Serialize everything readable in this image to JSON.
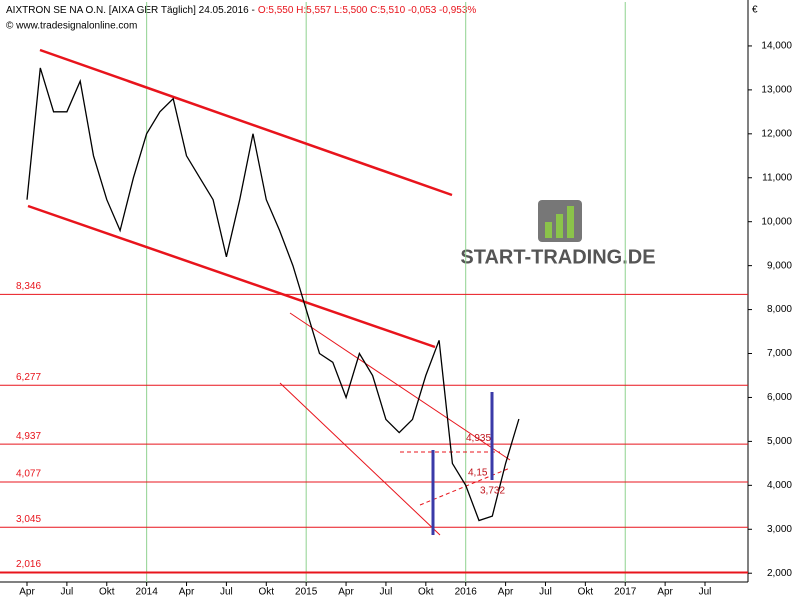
{
  "chart_data": {
    "type": "line",
    "header": {
      "instrument": "AIXTRON SE NA O.N. [AIXA GER  Täglich] 24.05.2016 -",
      "quote": "O:5,550 H:5,557 L:5,500 C:5,510 -0,053 -0,953%"
    },
    "source": "© www.tradesignalonline.com",
    "currency": "€",
    "logo": "START-TRADING.DE",
    "categories": [
      "Apr",
      null,
      null,
      "Jul",
      null,
      null,
      "Okt",
      null,
      null,
      "2014",
      null,
      null,
      "Apr",
      null,
      null,
      "Jul",
      null,
      null,
      "Okt",
      null,
      null,
      "2015",
      null,
      null,
      "Apr",
      null,
      null,
      "Jul",
      null,
      null,
      "Okt",
      null,
      null,
      "2016",
      null,
      null,
      "Apr",
      null,
      null,
      "Jul",
      null,
      null,
      "Okt",
      null,
      null,
      "2017",
      null,
      null,
      "Apr",
      null,
      null,
      "Jul"
    ],
    "series": [
      {
        "name": "AIXTRON SE NA O.N.",
        "color": "#000000",
        "values": [
          10.5,
          13.5,
          12.5,
          12.5,
          13.2,
          11.5,
          10.5,
          9.8,
          11.0,
          12.0,
          12.5,
          12.8,
          11.5,
          11.0,
          10.5,
          9.2,
          10.5,
          12.0,
          10.5,
          9.8,
          9.0,
          8.0,
          7.0,
          6.8,
          6.0,
          7.0,
          6.5,
          5.5,
          5.2,
          5.5,
          6.5,
          7.3,
          4.5,
          4.0,
          3.2,
          3.3,
          4.5,
          5.51,
          null,
          null,
          null,
          null,
          null,
          null,
          null,
          null,
          null,
          null,
          null,
          null,
          null,
          null
        ]
      }
    ],
    "levels": [
      {
        "value": 8.346,
        "label": "8,346"
      },
      {
        "value": 6.277,
        "label": "6,277"
      },
      {
        "value": 4.937,
        "label": "4,937"
      },
      {
        "value": 4.077,
        "label": "4,077"
      },
      {
        "value": 3.045,
        "label": "3,045"
      },
      {
        "value": 2.016,
        "label": "2,016"
      }
    ],
    "annotations": [
      {
        "value": 4.935,
        "label": "4,935"
      },
      {
        "value": 4.15,
        "label": "4,15"
      },
      {
        "value": 3.732,
        "label": "3,732"
      }
    ],
    "ylim": [
      1.8,
      15
    ],
    "yticks": [
      {
        "value": 2,
        "label": "2,000"
      },
      {
        "value": 3,
        "label": "3,000"
      },
      {
        "value": 4,
        "label": "4,000"
      },
      {
        "value": 5,
        "label": "5,000"
      },
      {
        "value": 6,
        "label": "6,000"
      },
      {
        "value": 7,
        "label": "7,000"
      },
      {
        "value": 8,
        "label": "8,000"
      },
      {
        "value": 9,
        "label": "9,000"
      },
      {
        "value": 10,
        "label": "10,000"
      },
      {
        "value": 11,
        "label": "11,000"
      },
      {
        "value": 12,
        "label": "12,000"
      },
      {
        "value": 13,
        "label": "13,000"
      },
      {
        "value": 14,
        "label": "14,000"
      }
    ],
    "level_color": "#e8141c",
    "year_grid_color": "#8fd28f"
  }
}
